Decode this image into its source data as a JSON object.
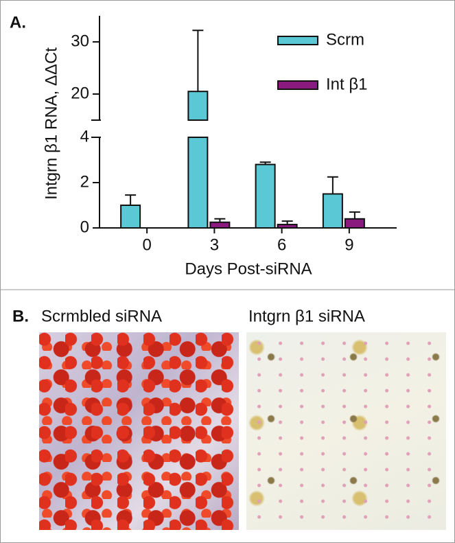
{
  "panel_a": {
    "label": "A."
  },
  "chart_data": {
    "type": "bar",
    "xlabel": "Days Post-siRNA",
    "ylabel": "Intgrn β1 RNA, ΔΔCt",
    "categories": [
      "0",
      "3",
      "6",
      "9"
    ],
    "series": [
      {
        "name": "Scrm",
        "color": "#5bc8d6",
        "values": [
          1.0,
          20.5,
          2.8,
          1.5
        ],
        "errors": [
          0.45,
          11.7,
          0.1,
          0.75
        ]
      },
      {
        "name": "Int β1",
        "color": "#8b1a7f",
        "values": [
          null,
          0.25,
          0.15,
          0.4
        ],
        "errors": [
          null,
          0.15,
          0.15,
          0.3
        ]
      }
    ],
    "ylim": [
      0,
      35
    ],
    "y_break": [
      4,
      15
    ],
    "yticks": [
      0,
      2,
      4,
      20,
      30
    ],
    "legend": "top-right",
    "grid": false
  },
  "panel_b": {
    "label": "B.",
    "images": [
      {
        "caption": "Scrmbled siRNA"
      },
      {
        "caption": "Intgrn β1 siRNA"
      }
    ]
  }
}
